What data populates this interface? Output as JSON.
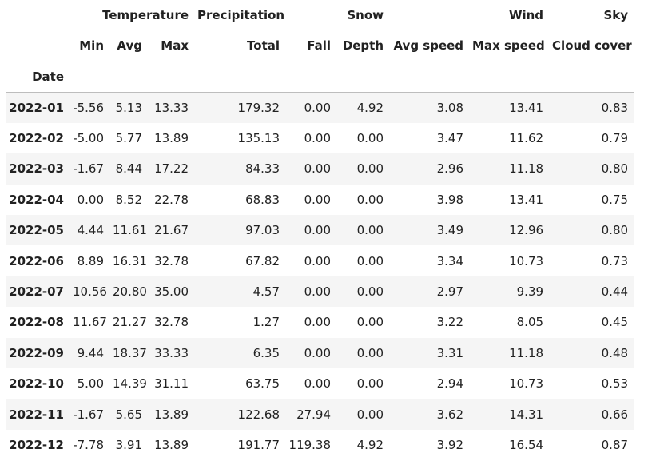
{
  "header": {
    "top_groups": [
      {
        "key": "temperature",
        "label": "Temperature"
      },
      {
        "key": "precipitation",
        "label": "Precipitation"
      },
      {
        "key": "snow",
        "label": "Snow"
      },
      {
        "key": "wind",
        "label": "Wind"
      },
      {
        "key": "sky",
        "label": "Sky"
      }
    ],
    "sub_columns": [
      "Min",
      "Avg",
      "Max",
      "Total",
      "Fall",
      "Depth",
      "Avg speed",
      "Max speed",
      "Cloud cover"
    ],
    "index_name": "Date"
  },
  "rows": [
    {
      "date": "2022-01",
      "values": [
        "-5.56",
        "5.13",
        "13.33",
        "179.32",
        "0.00",
        "4.92",
        "3.08",
        "13.41",
        "0.83"
      ]
    },
    {
      "date": "2022-02",
      "values": [
        "-5.00",
        "5.77",
        "13.89",
        "135.13",
        "0.00",
        "0.00",
        "3.47",
        "11.62",
        "0.79"
      ]
    },
    {
      "date": "2022-03",
      "values": [
        "-1.67",
        "8.44",
        "17.22",
        "84.33",
        "0.00",
        "0.00",
        "2.96",
        "11.18",
        "0.80"
      ]
    },
    {
      "date": "2022-04",
      "values": [
        "0.00",
        "8.52",
        "22.78",
        "68.83",
        "0.00",
        "0.00",
        "3.98",
        "13.41",
        "0.75"
      ]
    },
    {
      "date": "2022-05",
      "values": [
        "4.44",
        "11.61",
        "21.67",
        "97.03",
        "0.00",
        "0.00",
        "3.49",
        "12.96",
        "0.80"
      ]
    },
    {
      "date": "2022-06",
      "values": [
        "8.89",
        "16.31",
        "32.78",
        "67.82",
        "0.00",
        "0.00",
        "3.34",
        "10.73",
        "0.73"
      ]
    },
    {
      "date": "2022-07",
      "values": [
        "10.56",
        "20.80",
        "35.00",
        "4.57",
        "0.00",
        "0.00",
        "2.97",
        "9.39",
        "0.44"
      ]
    },
    {
      "date": "2022-08",
      "values": [
        "11.67",
        "21.27",
        "32.78",
        "1.27",
        "0.00",
        "0.00",
        "3.22",
        "8.05",
        "0.45"
      ]
    },
    {
      "date": "2022-09",
      "values": [
        "9.44",
        "18.37",
        "33.33",
        "6.35",
        "0.00",
        "0.00",
        "3.31",
        "11.18",
        "0.48"
      ]
    },
    {
      "date": "2022-10",
      "values": [
        "5.00",
        "14.39",
        "31.11",
        "63.75",
        "0.00",
        "0.00",
        "2.94",
        "10.73",
        "0.53"
      ]
    },
    {
      "date": "2022-11",
      "values": [
        "-1.67",
        "5.65",
        "13.89",
        "122.68",
        "27.94",
        "0.00",
        "3.62",
        "14.31",
        "0.66"
      ]
    },
    {
      "date": "2022-12",
      "values": [
        "-7.78",
        "3.91",
        "13.89",
        "191.77",
        "119.38",
        "4.92",
        "3.92",
        "16.54",
        "0.87"
      ]
    }
  ]
}
